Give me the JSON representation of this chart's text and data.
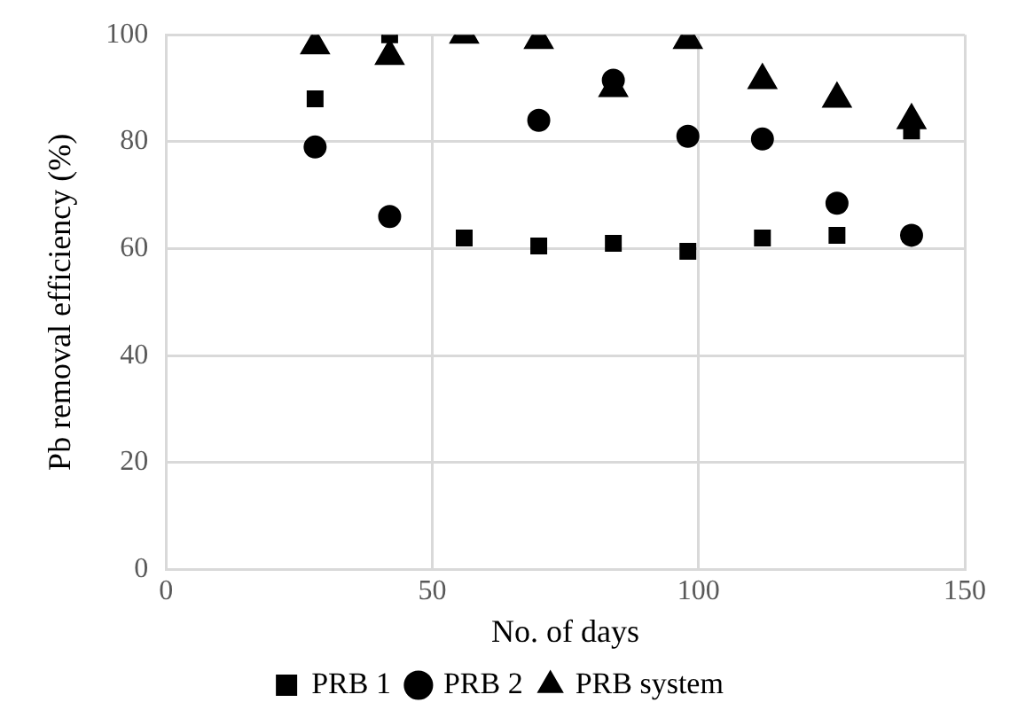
{
  "chart_data": {
    "type": "scatter",
    "xlabel": "No. of days",
    "ylabel": "Pb removal efficiency (%)",
    "x": [
      28,
      42,
      56,
      70,
      84,
      98,
      112,
      126,
      140
    ],
    "series": [
      {
        "name": "PRB 1",
        "color": "#000000",
        "marker": "square",
        "values": [
          88,
          100,
          62,
          60.5,
          61,
          59.5,
          62,
          62.5,
          82
        ]
      },
      {
        "name": "PRB 2",
        "color": "#000000",
        "marker": "circle",
        "values": [
          79,
          66,
          null,
          84,
          91.5,
          81,
          80.5,
          68.5,
          62.5
        ]
      },
      {
        "name": "PRB system",
        "color": "#000000",
        "marker": "triangle",
        "values": [
          98,
          96,
          100,
          99,
          90,
          99,
          91.5,
          88,
          84
        ]
      }
    ],
    "xlim": [
      0,
      150
    ],
    "xticks": [
      0,
      50,
      100,
      150
    ],
    "ylim": [
      0,
      100
    ],
    "yticks": [
      0,
      20,
      40,
      60,
      80,
      100
    ],
    "grid": true,
    "legend": "bottom"
  }
}
